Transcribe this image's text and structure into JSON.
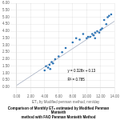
{
  "chart_data": {
    "type": "scatter",
    "title": "Comparison of Monthly ET₀ estimated by Modified Penman Monteith\nmethod with FAO Penman Monteith Method",
    "xlabel": "ET₀ by Modified penman method, mm/day",
    "xlim": [
      0,
      14
    ],
    "ylim": [
      0,
      6
    ],
    "xticks": [
      {
        "value": 0,
        "label": "0.00"
      },
      {
        "value": 2,
        "label": "2.00"
      },
      {
        "value": 4,
        "label": "4.00"
      },
      {
        "value": 6,
        "label": "6.00"
      },
      {
        "value": 8,
        "label": "8.00"
      },
      {
        "value": 10,
        "label": "10.00"
      },
      {
        "value": 12,
        "label": "12.00"
      },
      {
        "value": 14,
        "label": "14.00"
      }
    ],
    "yticks": [
      {
        "value": 0,
        "label": "0.00"
      },
      {
        "value": 0.5,
        "label": "0.50"
      },
      {
        "value": 1,
        "label": "1.00"
      },
      {
        "value": 1.5,
        "label": "1.50"
      },
      {
        "value": 2,
        "label": "2.00"
      },
      {
        "value": 2.5,
        "label": "2.50"
      },
      {
        "value": 3,
        "label": "3.00"
      },
      {
        "value": 3.5,
        "label": "3.50"
      },
      {
        "value": 4,
        "label": "4.00"
      },
      {
        "value": 4.5,
        "label": "4.50"
      },
      {
        "value": 5,
        "label": "5.00"
      },
      {
        "value": 5.5,
        "label": "5.50"
      },
      {
        "value": 6,
        "label": "6.00"
      }
    ],
    "grid": true,
    "annotations": [
      "y = 0.328x + 0.13",
      "R² = 0.785"
    ],
    "series": [
      {
        "type": "scatter",
        "color": "#2e75b6",
        "x": [
          4.0,
          4.2,
          4.5,
          4.7,
          4.8,
          5.0,
          5.2,
          5.5,
          6.0,
          6.5,
          7.0,
          8.0,
          8.5,
          9.0,
          9.5,
          10.0,
          10.2,
          10.5,
          10.8,
          11.0,
          11.2,
          11.2,
          11.5,
          11.8,
          12.0,
          12.2,
          12.5,
          12.8,
          13.0,
          13.2,
          13.5
        ],
        "values": [
          1.2,
          1.5,
          1.4,
          1.6,
          1.3,
          1.8,
          1.7,
          2.0,
          2.2,
          2.5,
          2.8,
          3.2,
          3.5,
          3.4,
          3.8,
          3.5,
          3.6,
          3.6,
          3.8,
          3.7,
          3.9,
          3.5,
          4.0,
          3.9,
          4.1,
          4.2,
          4.8,
          4.5,
          5.0,
          5.1,
          5.2
        ]
      },
      {
        "type": "line",
        "color": "#b0b8c8",
        "x": [
          0,
          14
        ],
        "values": [
          0.13,
          4.722
        ]
      }
    ]
  }
}
